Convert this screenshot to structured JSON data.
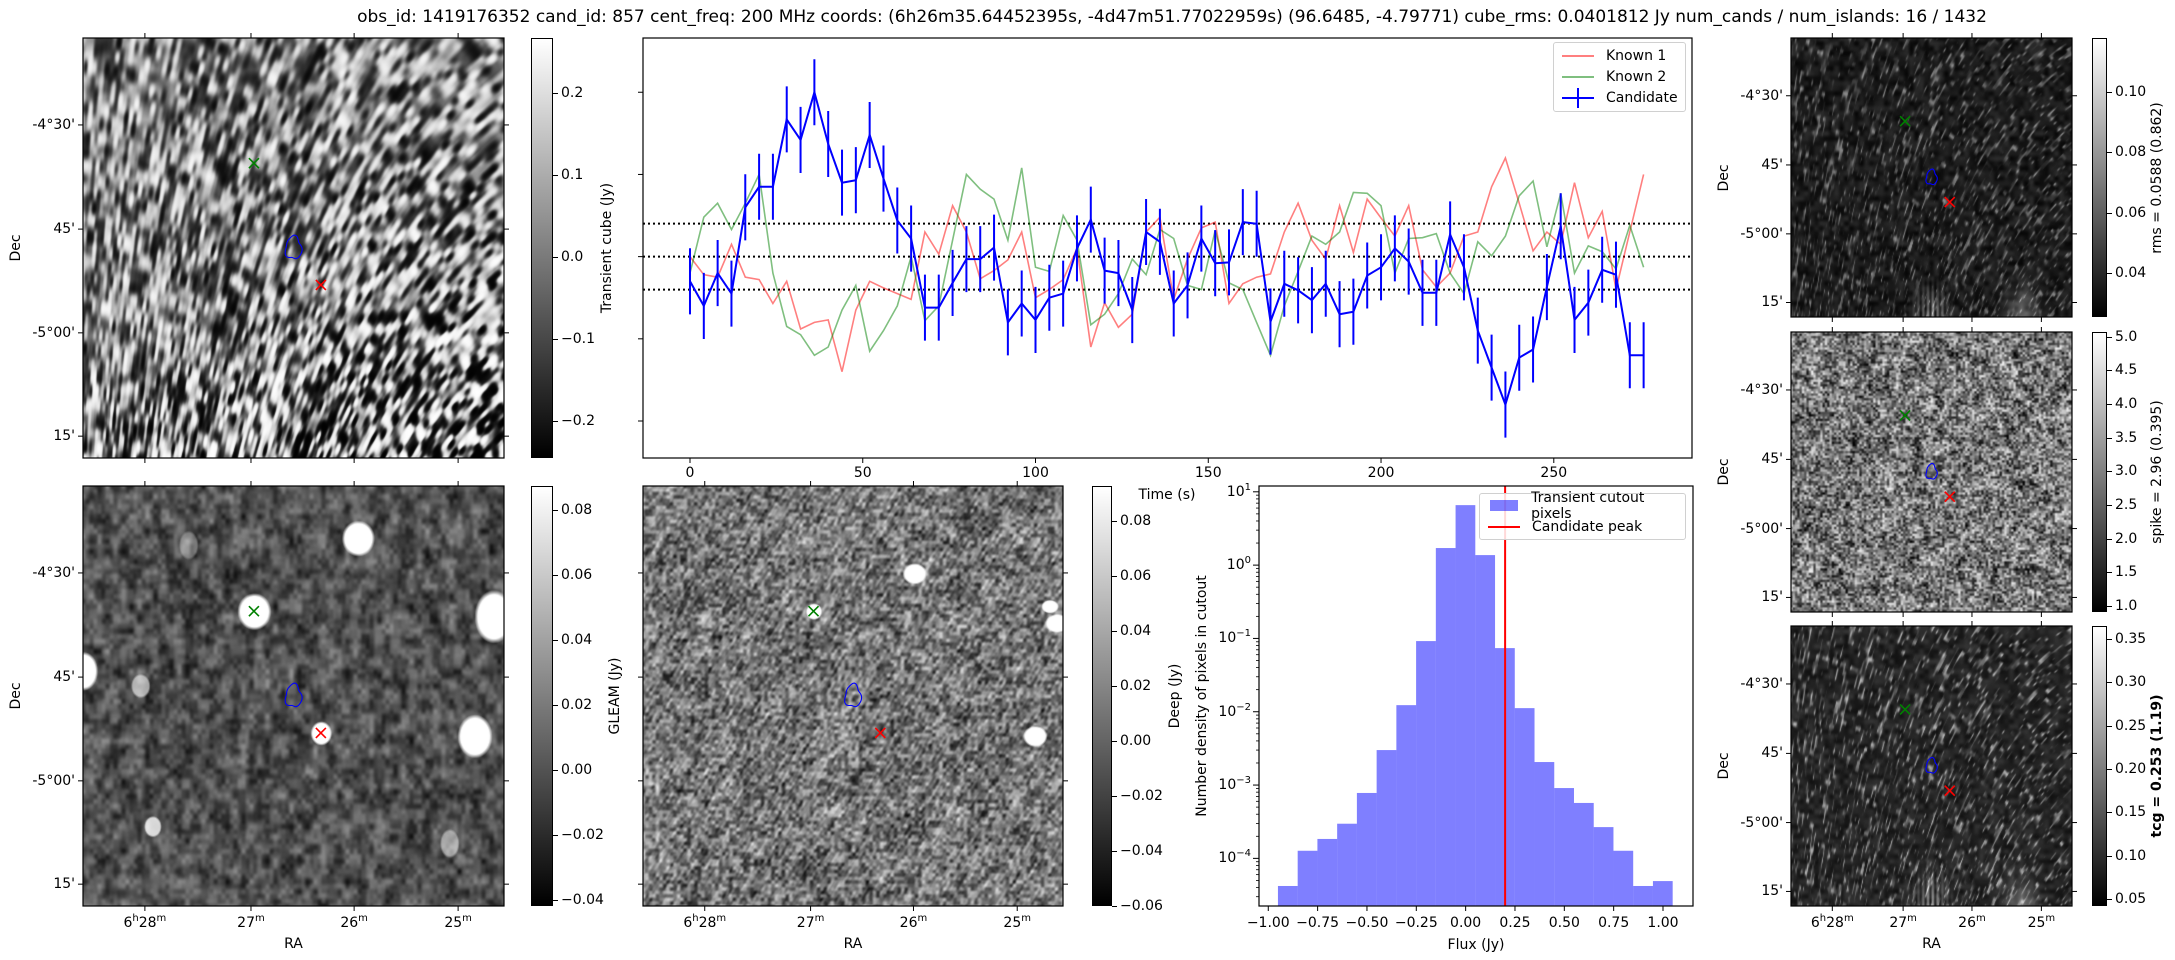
{
  "title": "obs_id: 1419176352 cand_id: 857 cent_freq: 200 MHz coords: (6h26m35.64452395s, -4d47m51.77022959s) (96.6485, -4.79771) cube_rms: 0.0401812 Jy num_cands / num_islands: 16 / 1432",
  "axes_common": {
    "ra_label": "RA",
    "dec_label": "Dec",
    "ra_ticks": [
      {
        "pre": "6",
        "pre_sup": "h",
        "val": "28",
        "sup": "m"
      },
      {
        "pre": "",
        "pre_sup": "",
        "val": "27",
        "sup": "m"
      },
      {
        "pre": "",
        "pre_sup": "",
        "val": "26",
        "sup": "m"
      },
      {
        "pre": "",
        "pre_sup": "",
        "val": "25",
        "sup": "m"
      }
    ],
    "dec_ticks": [
      "-4°30'",
      "45'",
      "-5°00'",
      "15'"
    ]
  },
  "markers": {
    "known_1_color": "#ff0000",
    "known_2_color": "#008000",
    "candidate_color": "#0000ff"
  },
  "images": {
    "transient": {
      "colorbar_label": "Transient cube (Jy)",
      "vmin": -0.245,
      "vmax": 0.267,
      "colorbar_ticks": [
        {
          "value": 0.2,
          "label": "0.2"
        },
        {
          "value": 0.1,
          "label": "0.1"
        },
        {
          "value": 0.0,
          "label": "0.0"
        },
        {
          "value": -0.1,
          "label": "−0.1"
        },
        {
          "value": -0.2,
          "label": "−0.2"
        }
      ]
    },
    "gleam": {
      "colorbar_label": "GLEAM (Jy)",
      "vmin": -0.0418,
      "vmax": 0.0874,
      "colorbar_ticks": [
        {
          "value": 0.08,
          "label": "0.08"
        },
        {
          "value": 0.06,
          "label": "0.06"
        },
        {
          "value": 0.04,
          "label": "0.04"
        },
        {
          "value": 0.02,
          "label": "0.02"
        },
        {
          "value": 0.0,
          "label": "0.00"
        },
        {
          "value": -0.02,
          "label": "−0.02"
        },
        {
          "value": -0.04,
          "label": "−0.04"
        }
      ]
    },
    "deep": {
      "colorbar_label": "Deep (Jy)",
      "vmin": -0.06,
      "vmax": 0.0927,
      "colorbar_ticks": [
        {
          "value": 0.08,
          "label": "0.08"
        },
        {
          "value": 0.06,
          "label": "0.06"
        },
        {
          "value": 0.04,
          "label": "0.04"
        },
        {
          "value": 0.02,
          "label": "0.02"
        },
        {
          "value": 0.0,
          "label": "0.00"
        },
        {
          "value": -0.02,
          "label": "−0.02"
        },
        {
          "value": -0.04,
          "label": "−0.04"
        },
        {
          "value": -0.06,
          "label": "−0.06"
        }
      ]
    },
    "rms": {
      "colorbar_label": "rms = 0.0588 (0.862)",
      "vmin": 0.0253,
      "vmax": 0.118,
      "colorbar_ticks": [
        {
          "value": 0.1,
          "label": "0.10"
        },
        {
          "value": 0.08,
          "label": "0.08"
        },
        {
          "value": 0.06,
          "label": "0.06"
        },
        {
          "value": 0.04,
          "label": "0.04"
        }
      ]
    },
    "spike": {
      "colorbar_label": "spike = 2.96 (0.395)",
      "vmin": 0.91,
      "vmax": 5.07,
      "colorbar_ticks": [
        {
          "value": 5.0,
          "label": "5.0"
        },
        {
          "value": 4.5,
          "label": "4.5"
        },
        {
          "value": 4.0,
          "label": "4.0"
        },
        {
          "value": 3.5,
          "label": "3.5"
        },
        {
          "value": 3.0,
          "label": "3.0"
        },
        {
          "value": 2.5,
          "label": "2.5"
        },
        {
          "value": 2.0,
          "label": "2.0"
        },
        {
          "value": 1.5,
          "label": "1.5"
        },
        {
          "value": 1.0,
          "label": "1.0"
        }
      ]
    },
    "tcg": {
      "colorbar_label": "tcg = 0.253 (1.19)",
      "vmin": 0.042,
      "vmax": 0.365,
      "colorbar_ticks": [
        {
          "value": 0.35,
          "label": "0.35"
        },
        {
          "value": 0.3,
          "label": "0.30"
        },
        {
          "value": 0.25,
          "label": "0.25"
        },
        {
          "value": 0.2,
          "label": "0.20"
        },
        {
          "value": 0.15,
          "label": "0.15"
        },
        {
          "value": 0.1,
          "label": "0.10"
        },
        {
          "value": 0.05,
          "label": "0.05"
        }
      ]
    }
  },
  "chart_data": [
    {
      "type": "line",
      "title": "",
      "xlabel": "Time (s)",
      "ylabel": "",
      "xlim": [
        -13.6,
        290
      ],
      "ylim": [
        -0.245,
        0.266
      ],
      "xticks": [
        {
          "value": 0,
          "label": "0"
        },
        {
          "value": 50,
          "label": "50"
        },
        {
          "value": 100,
          "label": "100"
        },
        {
          "value": 150,
          "label": "150"
        },
        {
          "value": 200,
          "label": "200"
        },
        {
          "value": 250,
          "label": "250"
        }
      ],
      "yticks": [
        0.2,
        0.1,
        0.0,
        -0.1,
        -0.2
      ],
      "hlines": [
        0.0401812,
        0.0,
        -0.0401812
      ],
      "legend": {
        "position": "top-right"
      },
      "x": [
        0,
        4,
        8,
        12,
        16,
        20,
        24,
        28,
        32,
        36,
        40,
        44,
        48,
        52,
        56,
        60,
        64,
        68,
        72,
        76,
        80,
        84,
        88,
        92,
        96,
        100,
        104,
        108,
        112,
        116,
        120,
        124,
        128,
        132,
        136,
        140,
        144,
        148,
        152,
        156,
        160,
        164,
        168,
        172,
        176,
        180,
        184,
        188,
        192,
        196,
        200,
        204,
        208,
        212,
        216,
        220,
        224,
        228,
        232,
        236,
        240,
        244,
        248,
        252,
        256,
        260,
        264,
        268,
        272,
        276
      ],
      "series": [
        {
          "name": "Known 1",
          "color": "#ff0000",
          "alpha": 0.5,
          "values": [
            0.0,
            -0.022,
            -0.025,
            0.015,
            -0.025,
            -0.028,
            -0.057,
            -0.03,
            -0.088,
            -0.08,
            -0.077,
            -0.14,
            -0.065,
            -0.03,
            -0.038,
            -0.045,
            -0.052,
            0.03,
            0.003,
            0.062,
            0.03,
            -0.027,
            -0.017,
            -0.004,
            0.03,
            -0.05,
            -0.04,
            -0.028,
            0.01,
            -0.11,
            -0.056,
            -0.086,
            -0.07,
            0.03,
            0.048,
            -0.052,
            -0.003,
            0.035,
            0.042,
            -0.057,
            -0.033,
            -0.025,
            -0.021,
            0.03,
            0.065,
            0.02,
            -0.003,
            0.062,
            0.005,
            0.07,
            0.047,
            0.025,
            0.062,
            -0.016,
            -0.037,
            -0.02,
            0.025,
            0.03,
            0.085,
            0.12,
            0.065,
            0.007,
            0.03,
            0.015,
            0.09,
            0.023,
            0.055,
            -0.04,
            0.03,
            0.1
          ]
        },
        {
          "name": "Known 2",
          "color": "#008000",
          "alpha": 0.5,
          "values": [
            -0.02,
            0.048,
            0.065,
            0.033,
            0.065,
            0.1,
            -0.02,
            -0.085,
            -0.095,
            -0.12,
            -0.11,
            -0.065,
            -0.035,
            -0.115,
            -0.09,
            -0.06,
            0.0,
            -0.078,
            -0.06,
            0.02,
            0.1,
            0.082,
            0.07,
            0.02,
            0.108,
            -0.013,
            -0.018,
            0.05,
            0.02,
            -0.083,
            -0.07,
            -0.045,
            -0.003,
            -0.022,
            0.033,
            0.022,
            -0.035,
            -0.04,
            0.032,
            -0.032,
            -0.04,
            -0.08,
            -0.12,
            -0.06,
            -0.018,
            0.025,
            0.015,
            0.03,
            0.078,
            0.077,
            0.062,
            -0.02,
            0.022,
            0.023,
            0.028,
            -0.02,
            -0.045,
            0.018,
            0.001,
            0.025,
            0.074,
            0.092,
            0.012,
            0.077,
            -0.02,
            0.013,
            0.006,
            -0.015,
            0.038,
            -0.013
          ]
        },
        {
          "name": "Candidate",
          "color": "#0000ff",
          "alpha": 1.0,
          "yerr": 0.0401812,
          "values": [
            -0.03,
            -0.06,
            -0.02,
            -0.045,
            0.06,
            0.085,
            0.085,
            0.167,
            0.142,
            0.2,
            0.137,
            0.09,
            0.093,
            0.148,
            0.095,
            0.044,
            0.022,
            -0.062,
            -0.062,
            -0.032,
            -0.003,
            -0.003,
            0.011,
            -0.08,
            -0.057,
            -0.077,
            -0.05,
            -0.045,
            0.01,
            0.045,
            -0.017,
            -0.02,
            -0.065,
            0.03,
            0.018,
            -0.057,
            -0.035,
            0.022,
            -0.008,
            -0.007,
            0.042,
            0.04,
            -0.079,
            -0.033,
            -0.041,
            -0.053,
            -0.033,
            -0.07,
            -0.067,
            -0.023,
            -0.013,
            0.01,
            -0.006,
            -0.044,
            -0.044,
            0.027,
            -0.013,
            -0.09,
            -0.135,
            -0.18,
            -0.123,
            -0.113,
            -0.037,
            0.037,
            -0.077,
            -0.056,
            -0.016,
            -0.022,
            -0.12,
            -0.12
          ]
        }
      ]
    },
    {
      "type": "bar",
      "title": "",
      "xlabel": "Flux (Jy)",
      "ylabel": "Number density of pixels in cutout",
      "yscale": "log",
      "xlim": [
        -1.047,
        1.152
      ],
      "ylim": [
        2.24e-05,
        12.0
      ],
      "xticks": [
        {
          "value": -1.0,
          "label": "−1.00"
        },
        {
          "value": -0.75,
          "label": "−0.75"
        },
        {
          "value": -0.5,
          "label": "−0.50"
        },
        {
          "value": -0.25,
          "label": "−0.25"
        },
        {
          "value": 0.0,
          "label": "0.00"
        },
        {
          "value": 0.25,
          "label": "0.25"
        },
        {
          "value": 0.5,
          "label": "0.50"
        },
        {
          "value": 0.75,
          "label": "0.75"
        },
        {
          "value": 1.0,
          "label": "1.00"
        }
      ],
      "yticks": [
        {
          "value": 10,
          "base": "10",
          "exp": "1"
        },
        {
          "value": 1,
          "base": "10",
          "exp": "0"
        },
        {
          "value": 0.1,
          "base": "10",
          "exp": "−1"
        },
        {
          "value": 0.01,
          "base": "10",
          "exp": "−2"
        },
        {
          "value": 0.001,
          "base": "10",
          "exp": "−3"
        },
        {
          "value": 0.0001,
          "base": "10",
          "exp": "−4"
        }
      ],
      "bin_edges": [
        -0.951,
        -0.851,
        -0.751,
        -0.651,
        -0.551,
        -0.451,
        -0.351,
        -0.251,
        -0.151,
        -0.051,
        0.049,
        0.149,
        0.249,
        0.349,
        0.449,
        0.549,
        0.649,
        0.749,
        0.849,
        0.949,
        1.049
      ],
      "values": [
        4.2e-05,
        0.000127,
        0.000184,
        0.000297,
        0.00078,
        0.003,
        0.0123,
        0.092,
        1.71,
        6.58,
        1.37,
        0.0738,
        0.0112,
        0.00206,
        0.00091,
        0.00057,
        0.000267,
        0.000127,
        4.2e-05,
        4.9e-05
      ],
      "series_name": "Transient cutout pixels",
      "bar_color": "#0000ff",
      "bar_alpha": 0.5,
      "vline": {
        "name": "Candidate peak",
        "value": 0.2,
        "color": "#ff0000"
      },
      "legend": {
        "position": "top-right"
      }
    }
  ]
}
